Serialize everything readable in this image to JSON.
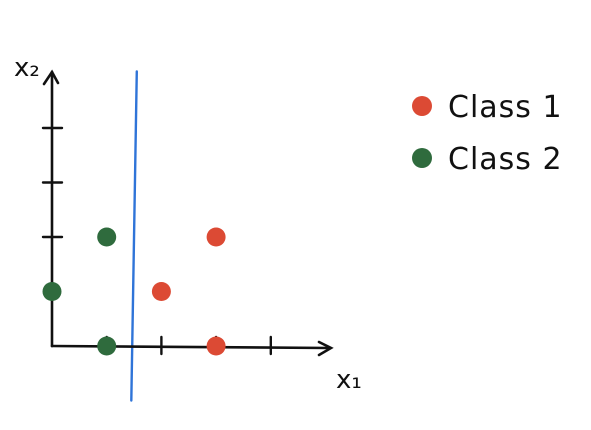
{
  "chart_data": {
    "type": "scatter",
    "title": "",
    "xlabel": "x₁",
    "ylabel": "x₂",
    "xlim": [
      0,
      5
    ],
    "ylim": [
      0,
      5
    ],
    "xticks": [
      1,
      2,
      3,
      4
    ],
    "yticks": [
      2,
      3,
      4
    ],
    "grid": false,
    "legend": "right",
    "series": [
      {
        "name": "Class 1",
        "color": "#dc4a34",
        "points": [
          {
            "x": 2,
            "y": 1
          },
          {
            "x": 3,
            "y": 2
          },
          {
            "x": 3,
            "y": 0
          }
        ]
      },
      {
        "name": "Class 2",
        "color": "#2f6b3d",
        "points": [
          {
            "x": 0,
            "y": 1
          },
          {
            "x": 1,
            "y": 2
          },
          {
            "x": 1,
            "y": 0
          }
        ]
      }
    ],
    "separator_line": {
      "color": "#2f74d8",
      "from": {
        "x": 1.55,
        "y": 5
      },
      "to": {
        "x": 1.45,
        "y": -1
      }
    }
  }
}
